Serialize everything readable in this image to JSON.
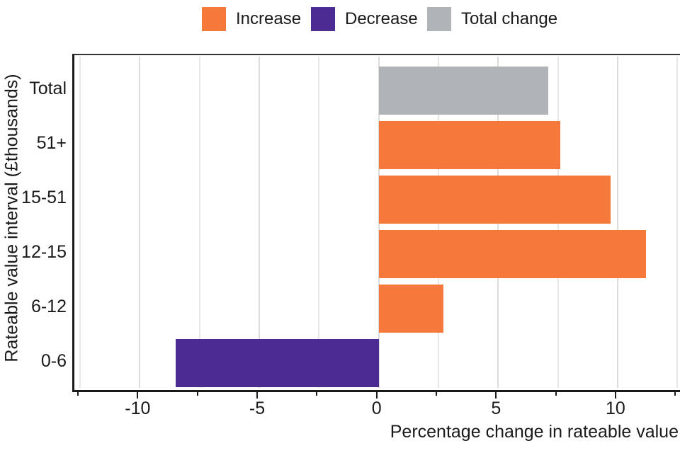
{
  "legend": {
    "items": [
      {
        "label": "Increase",
        "color": "#F4793B"
      },
      {
        "label": "Decrease",
        "color": "#4A2C93"
      },
      {
        "label": "Total change",
        "color": "#B1B4B6"
      }
    ]
  },
  "chart_data": {
    "type": "bar",
    "orientation": "horizontal",
    "title": "",
    "xlabel": "Percentage change in rateable value",
    "ylabel": "Rateable value interval (£thousands)",
    "categories": [
      "Total",
      "51+",
      "15-51",
      "12-15",
      "6-12",
      "0-6"
    ],
    "values": [
      7.1,
      7.6,
      9.7,
      11.2,
      2.7,
      -8.5
    ],
    "bar_series": [
      "Total change",
      "Increase",
      "Increase",
      "Increase",
      "Increase",
      "Decrease"
    ],
    "series_colors": {
      "Increase": "#F4793B",
      "Decrease": "#4A2C93",
      "Total change": "#B1B4B6"
    },
    "xlim": [
      -12.65,
      12.7
    ],
    "x_ticks_major": [
      -10,
      -5,
      0,
      5,
      10
    ],
    "x_tick_labels": [
      "-10",
      "-5",
      "0",
      "5",
      "10"
    ],
    "x_ticks_minor": [
      -12.5,
      -7.5,
      -2.5,
      2.5,
      7.5,
      12.5
    ],
    "grid": "vertical gridlines every 2.5, light gray",
    "legend_position": "top center"
  }
}
